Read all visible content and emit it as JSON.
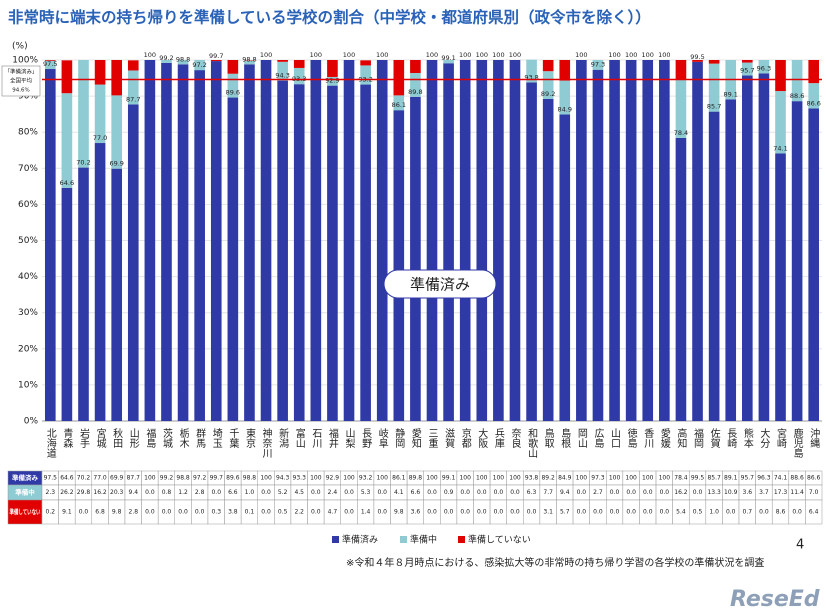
{
  "chart_data": {
    "type": "stacked_bar",
    "title": "非常時に端末の持ち帰りを準備している学校の割合（中学校・都道府県別（政令市を除く））",
    "y_label": "(%)",
    "categories": [
      "北海道",
      "青森",
      "岩手",
      "宮城",
      "秋田",
      "山形",
      "福島",
      "茨城",
      "栃木",
      "群馬",
      "埼玉",
      "千葉",
      "東京",
      "神奈川",
      "新潟",
      "富山",
      "石川",
      "福井",
      "山梨",
      "長野",
      "岐阜",
      "静岡",
      "愛知",
      "三重",
      "滋賀",
      "京都",
      "大阪",
      "兵庫",
      "奈良",
      "和歌山",
      "鳥取",
      "島根",
      "岡山",
      "広島",
      "山口",
      "徳島",
      "香川",
      "愛媛",
      "高知",
      "福岡",
      "佐賀",
      "長崎",
      "熊本",
      "大分",
      "宮崎",
      "鹿児島",
      "沖縄"
    ],
    "series": [
      {
        "name": "準備済み",
        "color": "#2f3aa6",
        "values": [
          97.5,
          64.6,
          70.2,
          77.0,
          69.9,
          87.7,
          100,
          99.2,
          98.8,
          97.2,
          99.7,
          89.6,
          98.8,
          100,
          94.3,
          93.3,
          100,
          92.9,
          100,
          93.2,
          100,
          86.1,
          89.8,
          100,
          99.1,
          100,
          100,
          100,
          100,
          93.8,
          89.2,
          84.9,
          100,
          97.3,
          100,
          100,
          100,
          100,
          78.4,
          99.5,
          85.7,
          89.1,
          95.7,
          96.3,
          74.1,
          88.6,
          86.6
        ],
        "value_labels": [
          "97.5",
          "64.6",
          "70.2",
          "77.0",
          "69.9",
          "87.7",
          "100",
          "99.2",
          "98.8",
          "97.2",
          "99.7",
          "89.6",
          "98.8",
          "100",
          "94.3",
          "93.3",
          "100",
          "92.9",
          "100",
          "93.2",
          "100",
          "86.1",
          "89.8",
          "100",
          "99.1",
          "100",
          "100",
          "100",
          "100",
          "93.8",
          "89.2",
          "84.9",
          "100",
          "97.3",
          "100",
          "100",
          "100",
          "100",
          "78.4",
          "99.5",
          "85.7",
          "89.1",
          "95.7",
          "96.3",
          "74.1",
          "88.6",
          "86.6"
        ]
      },
      {
        "name": "準備中",
        "color": "#8fcbd3",
        "values": [
          2.3,
          26.2,
          29.8,
          16.2,
          20.3,
          9.4,
          0.0,
          0.8,
          1.2,
          2.8,
          0.0,
          6.6,
          1.0,
          0.0,
          5.2,
          4.5,
          0.0,
          2.4,
          0.0,
          5.3,
          0.0,
          4.1,
          6.6,
          0.0,
          0.9,
          0.0,
          0.0,
          0.0,
          0.0,
          6.3,
          7.7,
          9.4,
          0.0,
          2.7,
          0.0,
          0.0,
          0.0,
          0.0,
          16.2,
          0.0,
          13.3,
          10.9,
          3.6,
          3.7,
          17.3,
          11.4,
          7.0
        ],
        "value_labels": [
          "2.3",
          "26.2",
          "29.8",
          "16.2",
          "20.3",
          "9.4",
          "0.0",
          "0.8",
          "1.2",
          "2.8",
          "0.0",
          "6.6",
          "1.0",
          "0.0",
          "5.2",
          "4.5",
          "0.0",
          "2.4",
          "0.0",
          "5.3",
          "0.0",
          "4.1",
          "6.6",
          "0.0",
          "0.9",
          "0.0",
          "0.0",
          "0.0",
          "0.0",
          "6.3",
          "7.7",
          "9.4",
          "0.0",
          "2.7",
          "0.0",
          "0.0",
          "0.0",
          "0.0",
          "16.2",
          "0.0",
          "13.3",
          "10.9",
          "3.6",
          "3.7",
          "17.3",
          "11.4",
          "7.0"
        ]
      },
      {
        "name": "準備していない",
        "color": "#e00000",
        "values": [
          0.2,
          9.1,
          0.0,
          6.8,
          9.8,
          2.8,
          0.0,
          0.0,
          0.0,
          0.0,
          0.3,
          3.8,
          0.1,
          0.0,
          0.5,
          2.2,
          0.0,
          4.7,
          0.0,
          1.4,
          0.0,
          9.8,
          3.6,
          0.0,
          0.0,
          0.0,
          0.0,
          0.0,
          0.0,
          0.0,
          3.1,
          5.7,
          0.0,
          0.0,
          0.0,
          0.0,
          0.0,
          0.0,
          5.4,
          0.5,
          1.0,
          0.0,
          0.7,
          0.0,
          8.6,
          0.0,
          6.4
        ],
        "value_labels": [
          "0.2",
          "9.1",
          "0.0",
          "6.8",
          "9.8",
          "2.8",
          "0.0",
          "0.0",
          "0.0",
          "0.0",
          "0.3",
          "3.8",
          "0.1",
          "0.0",
          "0.5",
          "2.2",
          "0.0",
          "4.7",
          "0.0",
          "1.4",
          "0.0",
          "9.8",
          "3.6",
          "0.0",
          "0.0",
          "0.0",
          "0.0",
          "0.0",
          "0.0",
          "0.0",
          "3.1",
          "5.7",
          "0.0",
          "0.0",
          "0.0",
          "0.0",
          "0.0",
          "0.0",
          "5.4",
          "0.5",
          "1.0",
          "0.0",
          "0.7",
          "0.0",
          "8.6",
          "0.0",
          "6.4"
        ]
      }
    ],
    "ylim": [
      0,
      100
    ],
    "yticks": [
      {
        "value": 0,
        "label": "0%"
      },
      {
        "value": 10,
        "label": "10%"
      },
      {
        "value": 20,
        "label": "20%"
      },
      {
        "value": 30,
        "label": "30%"
      },
      {
        "value": 40,
        "label": "40%"
      },
      {
        "value": 50,
        "label": "50%"
      },
      {
        "value": 60,
        "label": "60%"
      },
      {
        "value": 70,
        "label": "70%"
      },
      {
        "value": 80,
        "label": "80%"
      },
      {
        "value": 90,
        "label": "90%"
      },
      {
        "value": 100,
        "label": "100%"
      }
    ],
    "grid": true,
    "legend": "bottom",
    "reference_line": {
      "value": 94.6,
      "label": "94.6%",
      "texts": [
        "「準備済み」",
        "全国平均"
      ],
      "color": "#e00000"
    },
    "annotation": "準備済み",
    "note": "※令和４年８月時点における、感染拡大等の非常時の持ち帰り学習の各学校の準備状況を調査",
    "page_number": 4,
    "logo": "ReseEd"
  }
}
